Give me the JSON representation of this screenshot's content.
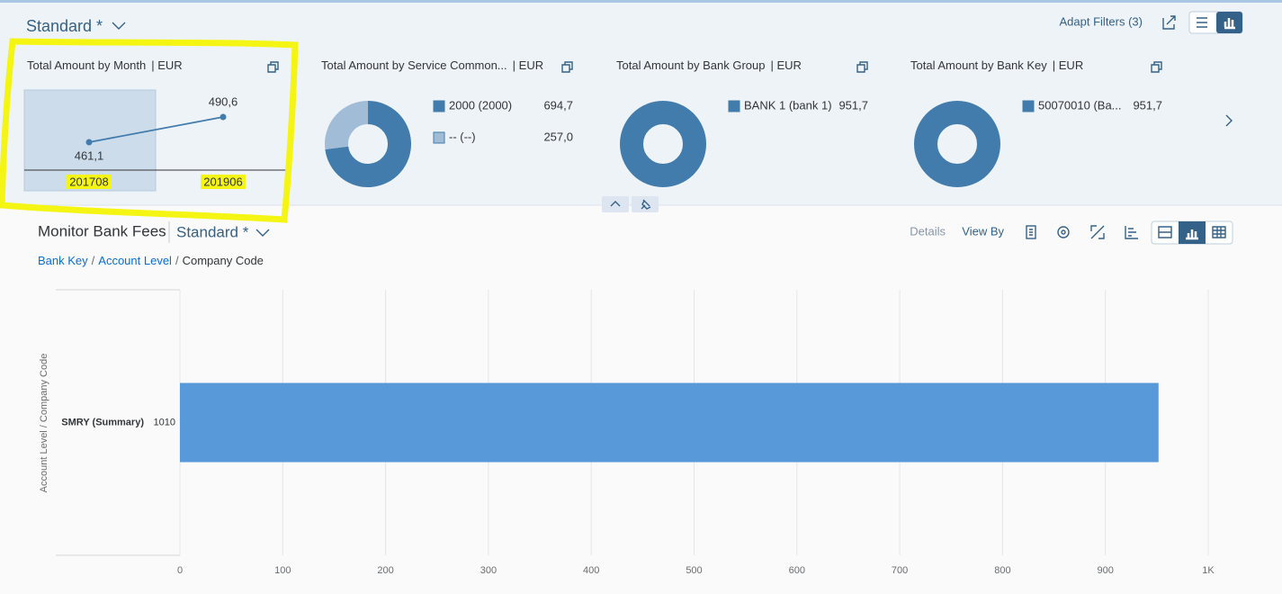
{
  "header": {
    "variant": "Standard *",
    "adapt_filters": "Adapt Filters (3)"
  },
  "filter_charts": [
    {
      "type": "line",
      "title": "Total Amount by Month",
      "unit": "| EUR",
      "categories": [
        "201708",
        "201906"
      ],
      "values": [
        461.1,
        490.6
      ],
      "value_labels": [
        "461,1",
        "490,6"
      ],
      "color": "#427cac"
    },
    {
      "type": "donut",
      "title": "Total Amount by Service Common...",
      "unit": "| EUR",
      "categories": [
        "2000 (2000)",
        "-- (--)"
      ],
      "values": [
        694.7,
        257.0
      ],
      "value_labels": [
        "694,7",
        "257,0"
      ],
      "colors": [
        "#427cac",
        "#a0bcd6"
      ]
    },
    {
      "type": "donut",
      "title": "Total Amount by Bank Group",
      "unit": "| EUR",
      "categories": [
        "BANK 1 (bank 1)"
      ],
      "values": [
        951.7
      ],
      "value_labels": [
        "951,7"
      ],
      "colors": [
        "#427cac"
      ]
    },
    {
      "type": "donut",
      "title": "Total Amount by Bank Key",
      "unit": "| EUR",
      "categories": [
        "50070010 (Ba..."
      ],
      "values": [
        951.7
      ],
      "value_labels": [
        "951,7"
      ],
      "colors": [
        "#427cac"
      ]
    }
  ],
  "main": {
    "title": "Monitor Bank Fees",
    "variant": "Standard *",
    "details": "Details",
    "view_by": "View By",
    "breadcrumb": [
      "Bank Key",
      "Account Level",
      "Company Code"
    ],
    "chart": {
      "type": "bar",
      "y_label": "Account Level / Company Code",
      "groups": [
        "SMRY (Summary)"
      ],
      "categories": [
        "1010"
      ],
      "values": [
        951.7
      ],
      "color": "#5899da",
      "xlim": [
        0,
        1000
      ],
      "xticks": [
        0,
        100,
        200,
        300,
        400,
        500,
        600,
        700,
        800,
        900,
        {
          "value": 1000,
          "label": "1K"
        }
      ],
      "grid": true
    }
  }
}
